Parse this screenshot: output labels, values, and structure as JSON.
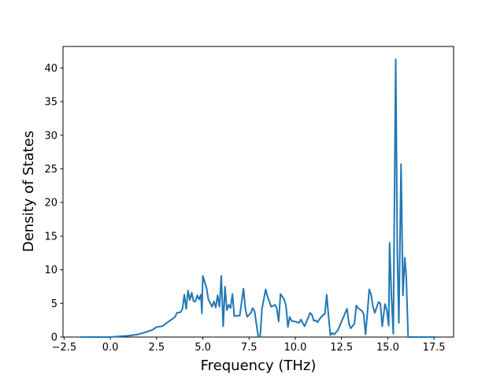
{
  "chart_data": {
    "type": "line",
    "xlabel": "Frequency (THz)",
    "ylabel": "Density of States",
    "color": "#1f77b4",
    "xlim": [
      -2.56,
      18.56
    ],
    "ylim": [
      0,
      43.2
    ],
    "xticks": [
      {
        "value": -2.5,
        "label": "−2.5"
      },
      {
        "value": 0,
        "label": "0.0"
      },
      2.5,
      {
        "value": 5,
        "label": "5.0"
      },
      7.5,
      {
        "value": 10,
        "label": "10.0"
      },
      12.5,
      {
        "value": 15,
        "label": "15.0"
      },
      17.5
    ],
    "yticks": [
      0,
      5,
      10,
      15,
      20,
      25,
      30,
      35,
      40
    ],
    "x": [
      -1.6,
      0,
      0.5,
      1,
      1.5,
      2,
      2.3,
      2.5,
      2.8,
      3,
      3.3,
      3.5,
      3.6,
      3.8,
      3.9,
      4.0,
      4.1,
      4.2,
      4.3,
      4.4,
      4.5,
      4.6,
      4.7,
      4.8,
      4.9,
      4.95,
      5.0,
      5.2,
      5.3,
      5.5,
      5.6,
      5.7,
      5.8,
      5.9,
      6.0,
      6.1,
      6.2,
      6.3,
      6.4,
      6.5,
      6.6,
      6.7,
      7.0,
      7.1,
      7.2,
      7.3,
      7.4,
      7.6,
      7.7,
      7.8,
      8.0,
      8.1,
      8.2,
      8.4,
      8.5,
      8.7,
      8.9,
      9.0,
      9.1,
      9.2,
      9.4,
      9.5,
      9.6,
      9.7,
      9.8,
      10.0,
      10.2,
      10.3,
      10.5,
      10.7,
      10.8,
      10.9,
      11.0,
      11.1,
      11.2,
      11.4,
      11.6,
      11.7,
      11.8,
      11.9,
      12.0,
      12.1,
      12.3,
      12.5,
      12.7,
      12.8,
      12.9,
      13.0,
      13.2,
      13.3,
      13.4,
      13.6,
      13.7,
      13.8,
      13.9,
      14.0,
      14.1,
      14.2,
      14.3,
      14.5,
      14.6,
      14.7,
      14.85,
      14.95,
      15.05,
      15.1,
      15.2,
      15.3,
      15.43,
      15.52,
      15.6,
      15.72,
      15.82,
      15.92,
      16.0,
      16.1,
      17.6
    ],
    "values": [
      0,
      0,
      0.1,
      0.2,
      0.4,
      0.8,
      1.1,
      1.5,
      1.6,
      2,
      2.6,
      3,
      3.6,
      3.7,
      4.2,
      6.3,
      4.2,
      6.9,
      5.5,
      6.6,
      5.3,
      5.3,
      6.2,
      5.6,
      6.3,
      3.5,
      9.1,
      7.3,
      5.6,
      4.5,
      5.3,
      4.4,
      6.2,
      4.5,
      9.1,
      1.6,
      7.5,
      4.0,
      4.8,
      4.3,
      6.4,
      3.1,
      3.2,
      5.2,
      7.2,
      4.2,
      3.0,
      3.6,
      4.3,
      3.8,
      0,
      0.1,
      4.2,
      7.1,
      6.0,
      4.5,
      4.8,
      4.3,
      2.3,
      6.4,
      5.6,
      4.6,
      1.5,
      3.0,
      2.4,
      2.3,
      2.1,
      2.6,
      1.6,
      2.9,
      3.6,
      3.3,
      2.4,
      2.5,
      2.2,
      3.0,
      3.5,
      6.3,
      3.0,
      0.3,
      0.6,
      0.4,
      1.0,
      2.3,
      3.6,
      4.2,
      2.0,
      1.3,
      2.0,
      4.7,
      4.3,
      3.9,
      3.4,
      0.4,
      3.6,
      7.1,
      6.3,
      4.5,
      3.6,
      5.2,
      5.0,
      1.6,
      4.9,
      4.0,
      1.7,
      14.0,
      6,
      0.5,
      41.3,
      12,
      2.1,
      25.7,
      6.2,
      11.8,
      9,
      0,
      0
    ]
  }
}
